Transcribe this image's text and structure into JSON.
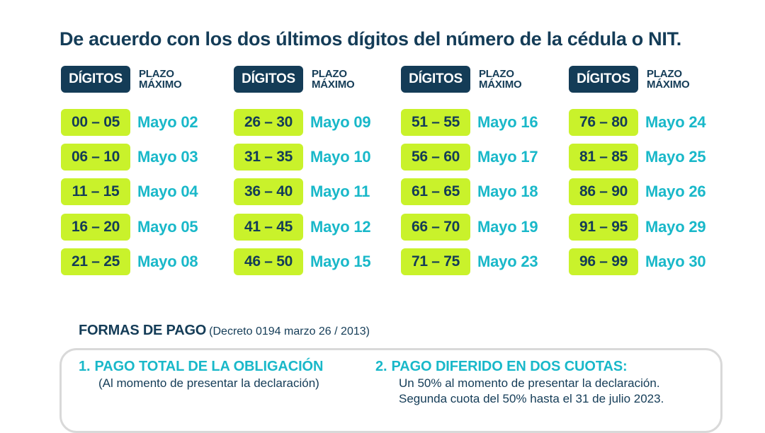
{
  "title": "De acuerdo con los dos últimos dígitos del número de la cédula o NIT.",
  "header": {
    "digits_label": "DÍGITOS",
    "plazo_line1": "PLAZO",
    "plazo_line2": "MÁXIMO"
  },
  "columns": [
    {
      "rows": [
        {
          "range": "00 – 05",
          "date": "Mayo 02"
        },
        {
          "range": "06 – 10",
          "date": "Mayo 03"
        },
        {
          "range": "11 – 15",
          "date": "Mayo 04"
        },
        {
          "range": "16 – 20",
          "date": "Mayo 05"
        },
        {
          "range": "21 – 25",
          "date": "Mayo 08"
        }
      ]
    },
    {
      "rows": [
        {
          "range": "26 – 30",
          "date": "Mayo 09"
        },
        {
          "range": "31 – 35",
          "date": "Mayo 10"
        },
        {
          "range": "36 – 40",
          "date": "Mayo 11"
        },
        {
          "range": "41 – 45",
          "date": "Mayo 12"
        },
        {
          "range": "46 – 50",
          "date": "Mayo 15"
        }
      ]
    },
    {
      "rows": [
        {
          "range": "51 – 55",
          "date": "Mayo 16"
        },
        {
          "range": "56 – 60",
          "date": "Mayo 17"
        },
        {
          "range": "61 – 65",
          "date": "Mayo 18"
        },
        {
          "range": "66 – 70",
          "date": "Mayo 19"
        },
        {
          "range": "71 – 75",
          "date": "Mayo 23"
        }
      ]
    },
    {
      "rows": [
        {
          "range": "76 – 80",
          "date": "Mayo 24"
        },
        {
          "range": "81 – 85",
          "date": "Mayo 25"
        },
        {
          "range": "86 – 90",
          "date": "Mayo 26"
        },
        {
          "range": "91 – 95",
          "date": "Mayo 29"
        },
        {
          "range": "96 – 99",
          "date": "Mayo 30"
        }
      ]
    }
  ],
  "formas": {
    "heading": "FORMAS DE PAGO",
    "decree": "(Decreto 0194 marzo 26 / 2013)"
  },
  "options": {
    "opt1": {
      "number": "1.",
      "title": "PAGO TOTAL DE LA OBLIGACIÓN",
      "subtitle": "(Al momento de presentar la declaración)"
    },
    "opt2": {
      "number": "2.",
      "title": "PAGO DIFERIDO EN DOS CUOTAS:",
      "line1": "Un 50% al momento de presentar la declaración.",
      "line2": "Segunda cuota del 50% hasta el 31 de julio 2023."
    }
  },
  "colors": {
    "navy": "#143c57",
    "lime": "#c9f22b",
    "teal": "#19b8c9",
    "border": "#d9d9d9"
  }
}
